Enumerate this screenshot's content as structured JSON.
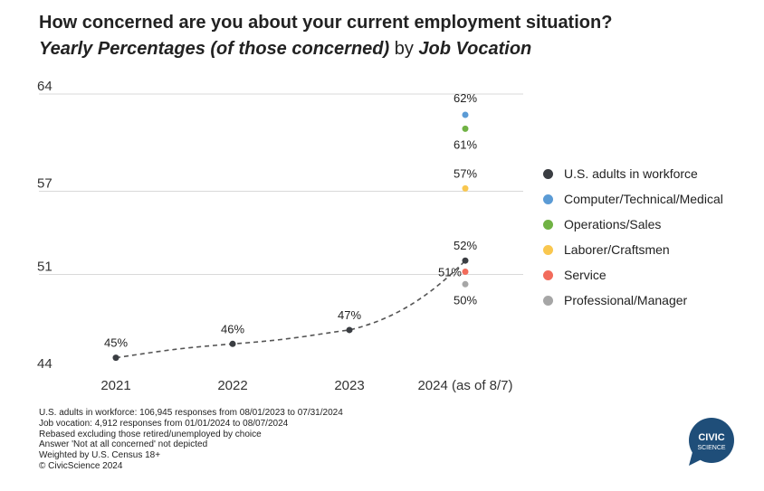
{
  "chart_data": {
    "type": "line",
    "title": "How concerned are you about your current employment situation?",
    "subtitle": {
      "part1": "Yearly Percentages (of those concerned)",
      "part2": " by ",
      "part3": "Job Vocation"
    },
    "categories": [
      "2021",
      "2022",
      "2023",
      "2024 (as of 8/7)"
    ],
    "ylim": [
      44,
      64
    ],
    "yticks": [
      "64",
      "57",
      "51",
      "44"
    ],
    "ytick_values": [
      64,
      57,
      51,
      44
    ],
    "series": [
      {
        "name": "U.S. adults in workforce",
        "color": "#3a3d42",
        "values": [
          45,
          46,
          47,
          52
        ],
        "labels": [
          "45%",
          "46%",
          "47%",
          "52%"
        ],
        "line": "dashed"
      },
      {
        "name": "Computer/Technical/Medical",
        "color": "#5b9bd5",
        "values": [
          null,
          null,
          null,
          62.5
        ],
        "labels": [
          null,
          null,
          null,
          "62%"
        ]
      },
      {
        "name": "Operations/Sales",
        "color": "#70b244",
        "values": [
          null,
          null,
          null,
          61.5
        ],
        "labels": [
          null,
          null,
          null,
          "61%"
        ]
      },
      {
        "name": "Laborer/Craftsmen",
        "color": "#f9c74f",
        "values": [
          null,
          null,
          null,
          57.2
        ],
        "labels": [
          null,
          null,
          null,
          "57%"
        ]
      },
      {
        "name": "Service",
        "color": "#f26b5b",
        "values": [
          null,
          null,
          null,
          51.2
        ],
        "labels": [
          null,
          null,
          null,
          "51%"
        ]
      },
      {
        "name": "Professional/Manager",
        "color": "#a6a6a6",
        "values": [
          null,
          null,
          null,
          50.3
        ],
        "labels": [
          null,
          null,
          null,
          "50%"
        ]
      }
    ],
    "legend_position": "right"
  },
  "footnotes": [
    "U.S. adults in workforce: 106,945 responses from 08/01/2023 to 07/31/2024",
    "Job vocation: 4,912 responses from 01/01/2024 to 08/07/2024",
    "Rebased excluding those retired/unemployed by choice",
    "Answer 'Not at all concerned' not depicted",
    "Weighted by U.S. Census 18+",
    "© CivicScience 2024"
  ],
  "logo": {
    "line1": "CIVIC",
    "line2": "SCIENCE",
    "color": "#1f4e79"
  }
}
